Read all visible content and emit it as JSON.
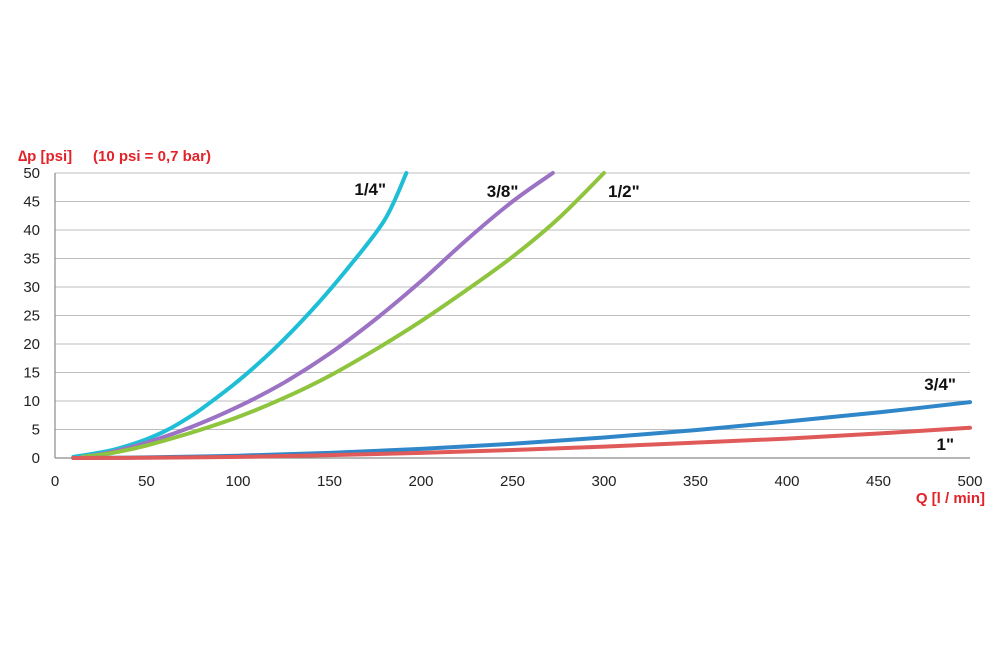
{
  "chart_data": {
    "type": "line",
    "ylabel_main": "∆p [psi]",
    "ylabel_note": "(10 psi = 0,7 bar)",
    "xlabel": "Q [l / min]",
    "xlim": [
      0,
      500
    ],
    "ylim": [
      0,
      50
    ],
    "xticks": [
      0,
      50,
      100,
      150,
      200,
      250,
      300,
      350,
      400,
      450,
      500
    ],
    "yticks": [
      0,
      5,
      10,
      15,
      20,
      25,
      30,
      35,
      40,
      45,
      50
    ],
    "grid": "horizontal",
    "axis_label_color": "#e2232a",
    "series": [
      {
        "name": "1/4\"",
        "color": "#1ebfd6",
        "x": [
          10,
          20,
          30,
          40,
          50,
          60,
          70,
          80,
          100,
          120,
          140,
          160,
          180,
          192
        ],
        "y": [
          0.2,
          0.7,
          1.3,
          2.2,
          3.3,
          4.7,
          6.5,
          8.6,
          13.5,
          19.2,
          25.8,
          33.3,
          41.7,
          50
        ]
      },
      {
        "name": "3/8\"",
        "color": "#9b72c4",
        "x": [
          15,
          30,
          50,
          75,
          100,
          125,
          150,
          175,
          200,
          225,
          250,
          272
        ],
        "y": [
          0.2,
          1.0,
          2.7,
          5.5,
          9.0,
          13.2,
          18.3,
          24.3,
          31.0,
          38.3,
          45.0,
          50
        ]
      },
      {
        "name": "1/2\"",
        "color": "#8fc43f",
        "x": [
          15,
          30,
          50,
          75,
          100,
          125,
          150,
          175,
          200,
          225,
          250,
          275,
          300
        ],
        "y": [
          0.2,
          0.8,
          2.2,
          4.5,
          7.2,
          10.5,
          14.4,
          19.0,
          24.0,
          29.5,
          35.3,
          42.0,
          50
        ]
      },
      {
        "name": "3/4\"",
        "color": "#2f86c8",
        "x": [
          10,
          50,
          100,
          150,
          200,
          250,
          300,
          350,
          400,
          450,
          500
        ],
        "y": [
          0.0,
          0.1,
          0.4,
          0.9,
          1.6,
          2.5,
          3.6,
          4.9,
          6.4,
          8.0,
          9.8
        ]
      },
      {
        "name": "1\"",
        "color": "#e05a5a",
        "x": [
          10,
          50,
          100,
          150,
          200,
          250,
          300,
          350,
          400,
          450,
          500
        ],
        "y": [
          0.0,
          0.05,
          0.2,
          0.5,
          0.9,
          1.4,
          2.0,
          2.7,
          3.4,
          4.3,
          5.3
        ]
      }
    ]
  }
}
